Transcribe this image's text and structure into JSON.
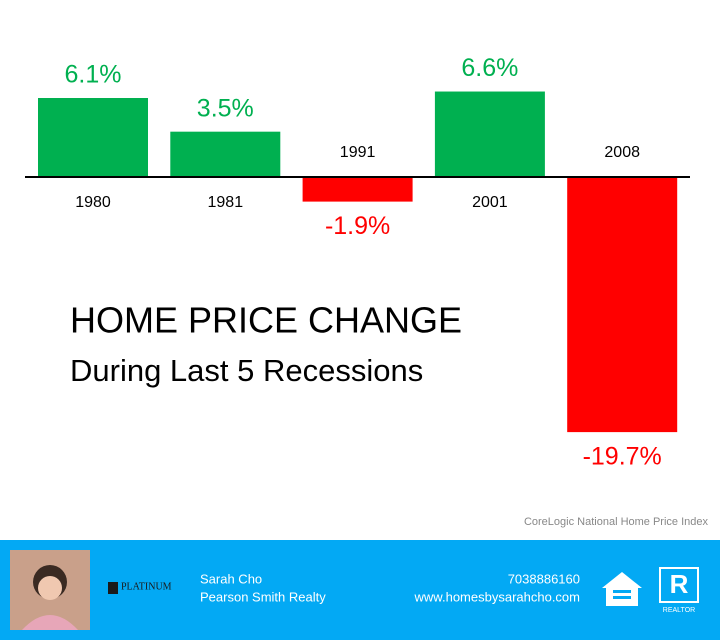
{
  "chart_data": {
    "type": "bar",
    "title": "HOME PRICE CHANGE",
    "subtitle": "During Last 5 Recessions",
    "source": "CoreLogic National Home Price Index",
    "categories": [
      "1980",
      "1981",
      "1991",
      "2001",
      "2008"
    ],
    "values": [
      6.1,
      3.5,
      -1.9,
      6.6,
      -19.7
    ],
    "value_labels": [
      "6.1%",
      "3.5%",
      "-1.9%",
      "6.6%",
      "-19.7%"
    ],
    "colors": [
      "#00b050",
      "#00b050",
      "#ff0000",
      "#00b050",
      "#ff0000"
    ]
  },
  "footer": {
    "brokerage_logo": "PLATINUM",
    "agent_name": "Sarah Cho",
    "company": "Pearson Smith Realty",
    "phone": "7038886160",
    "website": "www.homesbysarahcho.com",
    "realtor_logo": "REALTOR"
  }
}
